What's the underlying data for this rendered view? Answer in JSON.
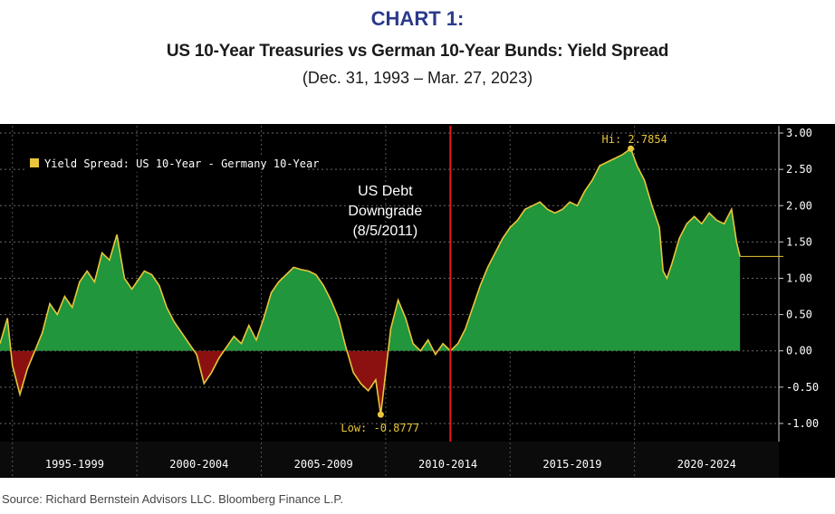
{
  "header": {
    "label": "CHART 1:",
    "title": "US 10-Year Treasuries vs German 10-Year Bunds: Yield Spread",
    "subtitle": "(Dec. 31, 1993  –  Mar. 27, 2023)"
  },
  "footer": {
    "source": "Source: Richard Bernstein Advisors LLC.  Bloomberg Finance L.P."
  },
  "chart_data": {
    "type": "area",
    "legend": "Yield Spread: US 10-Year - Germany 10-Year",
    "legend_position": "top-left",
    "y_axis_side": "right",
    "ylim": [
      -1.25,
      3.1
    ],
    "y_ticks": [
      3.0,
      2.5,
      2.0,
      1.5,
      1.0,
      0.5,
      0.0,
      -0.5,
      -1.0
    ],
    "y_tick_labels": [
      "3.00",
      "2.50",
      "2.00",
      "1.50",
      "1.00",
      "0.50",
      "0.00",
      "-0.50",
      "-1.00"
    ],
    "xlim": [
      1993.5,
      2024.8
    ],
    "grid": true,
    "x_groups": [
      {
        "label": "1995-1999",
        "start": 1994.0,
        "end": 1999.0
      },
      {
        "label": "2000-2004",
        "start": 1999.0,
        "end": 2004.0
      },
      {
        "label": "2005-2009",
        "start": 2004.0,
        "end": 2009.0
      },
      {
        "label": "2010-2014",
        "start": 2009.0,
        "end": 2014.0
      },
      {
        "label": "2015-2019",
        "start": 2014.0,
        "end": 2019.0
      },
      {
        "label": "2020-2024",
        "start": 2019.0,
        "end": 2024.8
      }
    ],
    "colors": {
      "background": "#000000",
      "positive_fill": "#21963c",
      "negative_fill": "#8b1111",
      "line": "#e8c63a",
      "event_line": "#e01b1b",
      "axis_text": "#ffffff",
      "annotation_text": "#e8c63a"
    },
    "annotations": {
      "event": {
        "date": 2011.6,
        "lines": [
          "US Debt",
          "Downgrade",
          "(8/5/2011)"
        ]
      },
      "high": {
        "x": 2018.85,
        "y": 2.7854,
        "label": "Hi: 2.7854"
      },
      "low": {
        "x": 2008.8,
        "y": -0.8777,
        "label": "Low: -0.8777"
      },
      "last_value": 1.3
    },
    "series": [
      {
        "x": [
          1993.5,
          1993.8,
          1994.0,
          1994.3,
          1994.6,
          1994.9,
          1995.2,
          1995.5,
          1995.8,
          1996.1,
          1996.4,
          1996.7,
          1997.0,
          1997.3,
          1997.6,
          1997.9,
          1998.2,
          1998.5,
          1998.8,
          1999.0,
          1999.3,
          1999.6,
          1999.9,
          2000.2,
          2000.5,
          2000.8,
          2001.1,
          2001.4,
          2001.7,
          2002.0,
          2002.3,
          2002.6,
          2002.9,
          2003.2,
          2003.5,
          2003.8,
          2004.1,
          2004.4,
          2004.7,
          2005.0,
          2005.3,
          2005.6,
          2005.9,
          2006.2,
          2006.5,
          2006.8,
          2007.1,
          2007.4,
          2007.7,
          2008.0,
          2008.3,
          2008.6,
          2008.8,
          2009.0,
          2009.2,
          2009.5,
          2009.8,
          2010.1,
          2010.4,
          2010.7,
          2011.0,
          2011.3,
          2011.6,
          2011.9,
          2012.2,
          2012.5,
          2012.8,
          2013.1,
          2013.4,
          2013.7,
          2014.0,
          2014.3,
          2014.6,
          2014.9,
          2015.2,
          2015.5,
          2015.8,
          2016.1,
          2016.4,
          2016.7,
          2017.0,
          2017.3,
          2017.6,
          2017.9,
          2018.2,
          2018.5,
          2018.85,
          2019.1,
          2019.4,
          2019.7,
          2020.0,
          2020.15,
          2020.3,
          2020.5,
          2020.8,
          2021.1,
          2021.4,
          2021.7,
          2022.0,
          2022.3,
          2022.6,
          2022.9,
          2023.1,
          2023.24
        ],
        "y": [
          0.1,
          0.45,
          -0.2,
          -0.6,
          -0.25,
          0.0,
          0.25,
          0.65,
          0.5,
          0.75,
          0.6,
          0.95,
          1.1,
          0.95,
          1.35,
          1.25,
          1.6,
          1.0,
          0.85,
          0.95,
          1.1,
          1.05,
          0.9,
          0.6,
          0.4,
          0.25,
          0.1,
          -0.05,
          -0.45,
          -0.3,
          -0.1,
          0.05,
          0.2,
          0.1,
          0.35,
          0.15,
          0.45,
          0.8,
          0.95,
          1.05,
          1.15,
          1.12,
          1.1,
          1.05,
          0.9,
          0.7,
          0.45,
          0.05,
          -0.3,
          -0.45,
          -0.55,
          -0.4,
          -0.8777,
          -0.3,
          0.3,
          0.7,
          0.45,
          0.1,
          0.0,
          0.15,
          -0.05,
          0.1,
          0.0,
          0.1,
          0.3,
          0.6,
          0.9,
          1.15,
          1.35,
          1.55,
          1.7,
          1.8,
          1.95,
          2.0,
          2.05,
          1.95,
          1.9,
          1.95,
          2.05,
          2.0,
          2.2,
          2.35,
          2.55,
          2.6,
          2.65,
          2.7,
          2.7854,
          2.55,
          2.35,
          2.0,
          1.7,
          1.1,
          1.0,
          1.2,
          1.55,
          1.75,
          1.85,
          1.75,
          1.9,
          1.8,
          1.75,
          1.95,
          1.5,
          1.3
        ]
      }
    ]
  }
}
